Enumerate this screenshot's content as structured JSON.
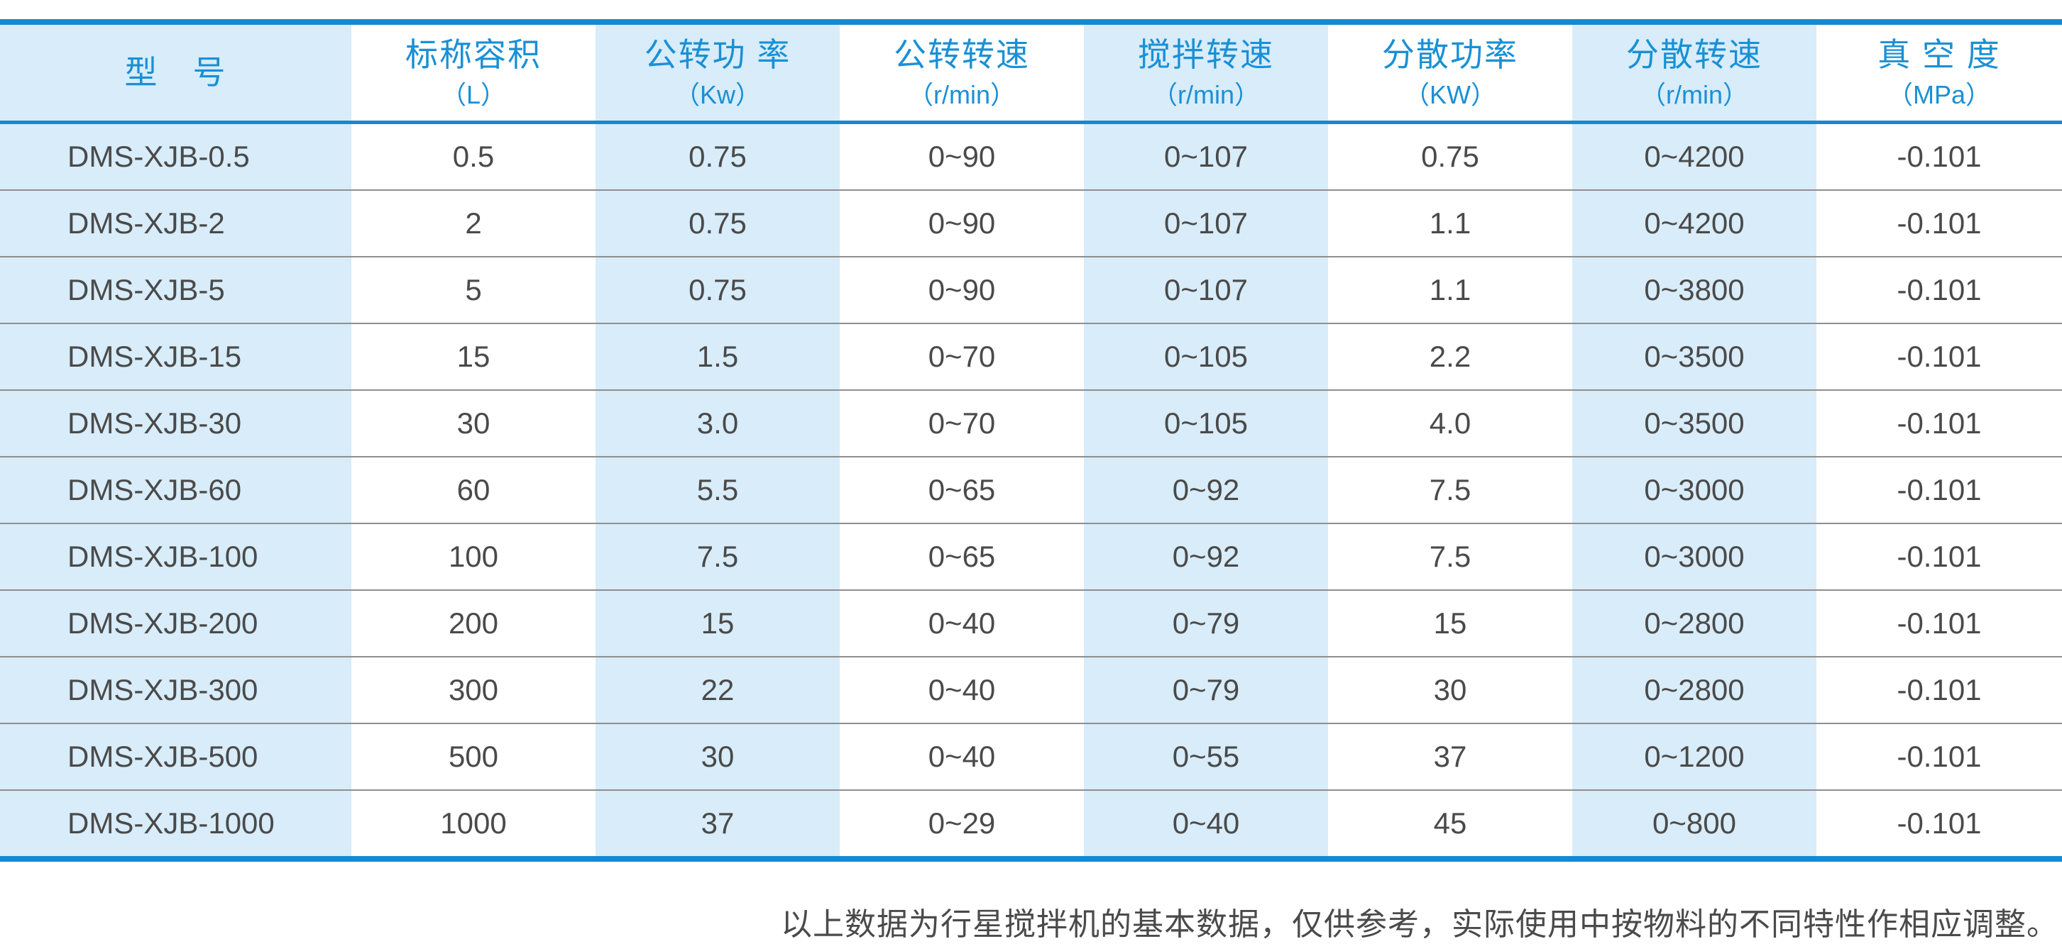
{
  "table": {
    "columns": [
      {
        "label": "型　号",
        "unit": ""
      },
      {
        "label": "标称容积",
        "unit": "（L）"
      },
      {
        "label": "公转功 率",
        "unit": "（Kw）"
      },
      {
        "label": "公转转速",
        "unit": "（r/min）"
      },
      {
        "label": "搅拌转速",
        "unit": "（r/min）"
      },
      {
        "label": "分散功率",
        "unit": "（KW）"
      },
      {
        "label": "分散转速",
        "unit": "（r/min）"
      },
      {
        "label": "真 空 度",
        "unit": "（MPa）"
      }
    ],
    "rows": [
      [
        "DMS-XJB-0.5",
        "0.5",
        "0.75",
        "0~90",
        "0~107",
        "0.75",
        "0~4200",
        "-0.101"
      ],
      [
        "DMS-XJB-2",
        "2",
        "0.75",
        "0~90",
        "0~107",
        "1.1",
        "0~4200",
        "-0.101"
      ],
      [
        "DMS-XJB-5",
        "5",
        "0.75",
        "0~90",
        "0~107",
        "1.1",
        "0~3800",
        "-0.101"
      ],
      [
        "DMS-XJB-15",
        "15",
        "1.5",
        "0~70",
        "0~105",
        "2.2",
        "0~3500",
        "-0.101"
      ],
      [
        "DMS-XJB-30",
        "30",
        "3.0",
        "0~70",
        "0~105",
        "4.0",
        "0~3500",
        "-0.101"
      ],
      [
        "DMS-XJB-60",
        "60",
        "5.5",
        "0~65",
        "0~92",
        "7.5",
        "0~3000",
        "-0.101"
      ],
      [
        "DMS-XJB-100",
        "100",
        "7.5",
        "0~65",
        "0~92",
        "7.5",
        "0~3000",
        "-0.101"
      ],
      [
        "DMS-XJB-200",
        "200",
        "15",
        "0~40",
        "0~79",
        "15",
        "0~2800",
        "-0.101"
      ],
      [
        "DMS-XJB-300",
        "300",
        "22",
        "0~40",
        "0~79",
        "30",
        "0~2800",
        "-0.101"
      ],
      [
        "DMS-XJB-500",
        "500",
        "30",
        "0~40",
        "0~55",
        "37",
        "0~1200",
        "-0.101"
      ],
      [
        "DMS-XJB-1000",
        "1000",
        "37",
        "0~29",
        "0~40",
        "45",
        "0~800",
        "-0.101"
      ]
    ]
  },
  "footer": {
    "note": "以上数据为行星搅拌机的基本数据，仅供参考，实际使用中按物料的不同特性作相应调整。"
  },
  "colors": {
    "accent_blue": "#1589d2",
    "header_text_blue": "#1a90d5",
    "cell_blue_background": "#d8ecf9",
    "data_text_gray": "#4a4a4a",
    "row_separator_gray": "#8f8f8f"
  }
}
